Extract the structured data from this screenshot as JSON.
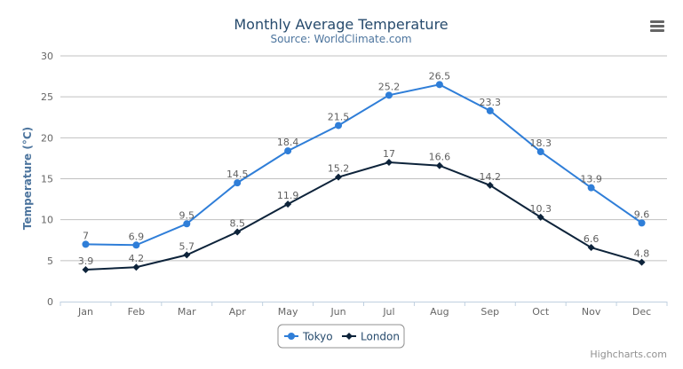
{
  "chart_data": {
    "type": "line",
    "title": "Monthly Average Temperature",
    "subtitle": "Source: WorldClimate.com",
    "xlabel": "",
    "ylabel": "Temperature (°C)",
    "categories": [
      "Jan",
      "Feb",
      "Mar",
      "Apr",
      "May",
      "Jun",
      "Jul",
      "Aug",
      "Sep",
      "Oct",
      "Nov",
      "Dec"
    ],
    "ylim": [
      0,
      30
    ],
    "yticks": [
      "0",
      "5",
      "10",
      "15",
      "20",
      "25",
      "30"
    ],
    "grid": true,
    "legend_position": "bottom-center",
    "data_labels": true,
    "series": [
      {
        "name": "Tokyo",
        "color": "#2f7ed8",
        "marker": "circle",
        "values": [
          7,
          6.9,
          9.5,
          14.5,
          18.4,
          21.5,
          25.2,
          26.5,
          23.3,
          18.3,
          13.9,
          9.6
        ]
      },
      {
        "name": "London",
        "color": "#0d233a",
        "marker": "diamond",
        "values": [
          3.9,
          4.2,
          5.7,
          8.5,
          11.9,
          15.2,
          17,
          16.6,
          14.2,
          10.3,
          6.6,
          4.8
        ]
      }
    ]
  },
  "credits": "Highcharts.com",
  "menu_icon": "hamburger-menu-icon"
}
